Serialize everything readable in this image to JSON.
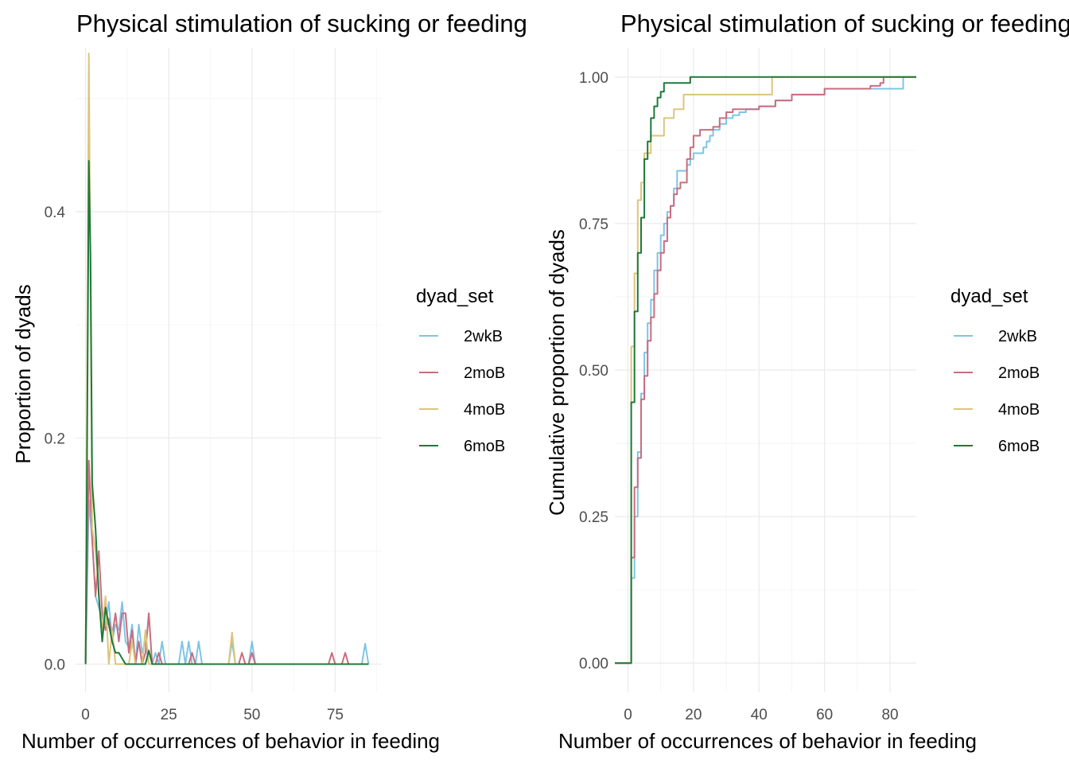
{
  "chart_data": [
    {
      "type": "line",
      "title": "Physical stimulation of sucking or feeding",
      "xlabel": "Number of occurrences of behavior in feeding",
      "ylabel": "Proportion of dyads",
      "xlim": [
        -3,
        89
      ],
      "ylim": [
        -0.025,
        0.545
      ],
      "x_major_ticks": [
        0,
        25,
        50,
        75
      ],
      "x_tick_labels": [
        "0",
        "25",
        "50",
        "75"
      ],
      "x_minor_ticks": [
        12.5,
        37.5,
        62.5,
        87.5
      ],
      "y_major_ticks": [
        0,
        0.2,
        0.4
      ],
      "y_tick_labels": [
        "0.0",
        "0.2",
        "0.4"
      ],
      "y_minor_ticks": [
        0.1,
        0.3,
        0.5
      ],
      "grid": true,
      "legend": {
        "title": "dyad_set",
        "position": "right"
      },
      "series": [
        {
          "name": "2wkB",
          "color": "#7fc4e4",
          "x": [
            0,
            1,
            2,
            3,
            4,
            5,
            6,
            7,
            8,
            9,
            10,
            11,
            12,
            13,
            14,
            15,
            16,
            17,
            18,
            19,
            20,
            21,
            22,
            23,
            24,
            25,
            26,
            27,
            28,
            29,
            30,
            31,
            32,
            33,
            34,
            35,
            36,
            37,
            38,
            39,
            40,
            41,
            42,
            43,
            44,
            45,
            46,
            47,
            48,
            49,
            50,
            51,
            52,
            60,
            70,
            80,
            83,
            84,
            85
          ],
          "y": [
            0.0,
            0.145,
            0.11,
            0.06,
            0.05,
            0.04,
            0.035,
            0.055,
            0.02,
            0.035,
            0.03,
            0.055,
            0.02,
            0.015,
            0.035,
            0.0,
            0.035,
            0.01,
            0.02,
            0.0,
            0.0,
            0.01,
            0.0,
            0.02,
            0.0,
            0.0,
            0.0,
            0.0,
            0.0,
            0.02,
            0.0,
            0.02,
            0.0,
            0.0,
            0.02,
            0.0,
            0.0,
            0.0,
            0.0,
            0.0,
            0.0,
            0.0,
            0.0,
            0.0,
            0.02,
            0.0,
            0.0,
            0.0,
            0.0,
            0.0,
            0.02,
            0.0,
            0.0,
            0.0,
            0.0,
            0.0,
            0.0,
            0.018,
            0.0
          ]
        },
        {
          "name": "2moB",
          "color": "#c96d7f",
          "x": [
            0,
            1,
            2,
            3,
            4,
            5,
            6,
            7,
            8,
            9,
            10,
            11,
            12,
            13,
            14,
            15,
            16,
            17,
            18,
            19,
            20,
            21,
            22,
            23,
            24,
            25,
            26,
            27,
            28,
            29,
            30,
            31,
            32,
            33,
            34,
            35,
            36,
            37,
            38,
            39,
            40,
            41,
            42,
            43,
            44,
            45,
            46,
            47,
            48,
            49,
            50,
            51,
            52,
            60,
            70,
            73,
            74,
            75,
            77,
            78,
            79,
            80,
            85
          ],
          "y": [
            0.0,
            0.18,
            0.11,
            0.06,
            0.1,
            0.045,
            0.03,
            0.04,
            0.025,
            0.045,
            0.02,
            0.045,
            0.045,
            0.01,
            0.03,
            0.0,
            0.02,
            0.0,
            0.01,
            0.045,
            0.0,
            0.0,
            0.01,
            0.0,
            0.0,
            0.0,
            0.0,
            0.0,
            0.0,
            0.0,
            0.0,
            0.0,
            0.01,
            0.0,
            0.0,
            0.0,
            0.0,
            0.0,
            0.0,
            0.0,
            0.0,
            0.0,
            0.0,
            0.0,
            0.0,
            0.0,
            0.0,
            0.01,
            0.0,
            0.0,
            0.01,
            0.0,
            0.0,
            0.0,
            0.0,
            0.0,
            0.01,
            0.0,
            0.0,
            0.01,
            0.0,
            0.0,
            0.0
          ]
        },
        {
          "name": "4moB",
          "color": "#dcc57a",
          "x": [
            0,
            1,
            2,
            3,
            4,
            5,
            6,
            7,
            8,
            9,
            10,
            11,
            12,
            13,
            14,
            15,
            16,
            17,
            18,
            19,
            20,
            21,
            40,
            43,
            44,
            45,
            46,
            50,
            85
          ],
          "y": [
            0.0,
            0.54,
            0.12,
            0.1,
            0.06,
            0.03,
            0.06,
            0.0,
            0.03,
            0.0,
            0.0,
            0.0,
            0.0,
            0.0,
            0.02,
            0.0,
            0.0,
            0.0,
            0.03,
            0.0,
            0.0,
            0.0,
            0.0,
            0.0,
            0.028,
            0.0,
            0.0,
            0.0,
            0.0
          ]
        },
        {
          "name": "6moB",
          "color": "#1d7a3a",
          "x": [
            0,
            0.3,
            1,
            1.5,
            2,
            3,
            4,
            5,
            6,
            7,
            8,
            9,
            10,
            11,
            12,
            13,
            14,
            15,
            16,
            17,
            18,
            19,
            20,
            21,
            85
          ],
          "y": [
            0.0,
            0.11,
            0.445,
            0.36,
            0.16,
            0.12,
            0.06,
            0.02,
            0.05,
            0.035,
            0.02,
            0.01,
            0.01,
            0.005,
            0.0,
            0.0,
            0.0,
            0.0,
            0.0,
            0.0,
            0.0,
            0.012,
            0.0,
            0.0,
            0.0
          ]
        }
      ]
    },
    {
      "type": "line",
      "title": "Physical stimulation of sucking or feeding",
      "xlabel": "Number of occurrences of behavior in feeding",
      "ylabel": "Cumulative proportion of dyads",
      "xlim": [
        -4,
        88
      ],
      "ylim": [
        -0.05,
        1.05
      ],
      "x_major_ticks": [
        0,
        20,
        40,
        60,
        80
      ],
      "x_tick_labels": [
        "0",
        "20",
        "40",
        "60",
        "80"
      ],
      "x_minor_ticks": [
        10,
        30,
        50,
        70
      ],
      "y_major_ticks": [
        0,
        0.25,
        0.5,
        0.75,
        1.0
      ],
      "y_tick_labels": [
        "0.00",
        "0.25",
        "0.50",
        "0.75",
        "1.00"
      ],
      "y_minor_ticks": [
        0.125,
        0.375,
        0.625,
        0.875
      ],
      "grid": true,
      "legend": {
        "title": "dyad_set",
        "position": "right"
      },
      "series": [
        {
          "name": "2wkB",
          "color": "#7fc4e4",
          "x": [
            -4,
            1,
            2,
            3,
            4,
            5,
            6,
            7,
            8,
            9,
            10,
            11,
            12,
            13,
            14,
            15,
            16,
            17,
            18,
            19,
            20,
            21,
            22,
            23,
            24,
            25,
            26,
            28,
            30,
            32,
            34,
            36,
            40,
            45,
            50,
            60,
            70,
            83,
            84,
            88
          ],
          "y": [
            0.0,
            0.145,
            0.25,
            0.36,
            0.46,
            0.53,
            0.58,
            0.62,
            0.67,
            0.7,
            0.73,
            0.75,
            0.77,
            0.78,
            0.81,
            0.84,
            0.84,
            0.84,
            0.85,
            0.86,
            0.87,
            0.87,
            0.87,
            0.88,
            0.89,
            0.9,
            0.91,
            0.92,
            0.93,
            0.935,
            0.94,
            0.945,
            0.95,
            0.96,
            0.97,
            0.98,
            0.98,
            0.98,
            1.0,
            1.0
          ]
        },
        {
          "name": "2moB",
          "color": "#c96d7f",
          "x": [
            -4,
            1,
            2,
            3,
            4,
            5,
            6,
            7,
            8,
            9,
            10,
            11,
            12,
            13,
            14,
            15,
            16,
            17,
            18,
            19,
            20,
            21,
            22,
            23,
            24,
            25,
            26,
            28,
            30,
            32,
            40,
            45,
            50,
            60,
            74,
            77,
            78,
            88
          ],
          "y": [
            0.0,
            0.18,
            0.3,
            0.35,
            0.45,
            0.49,
            0.55,
            0.59,
            0.63,
            0.67,
            0.7,
            0.72,
            0.76,
            0.78,
            0.8,
            0.81,
            0.82,
            0.82,
            0.86,
            0.88,
            0.9,
            0.9,
            0.91,
            0.91,
            0.91,
            0.91,
            0.915,
            0.93,
            0.94,
            0.945,
            0.95,
            0.96,
            0.97,
            0.98,
            0.985,
            0.99,
            1.0,
            1.0
          ]
        },
        {
          "name": "4moB",
          "color": "#dcc57a",
          "x": [
            -4,
            1,
            2,
            3,
            4,
            5,
            6,
            7,
            8,
            9,
            10,
            11,
            12,
            14,
            15,
            16,
            17,
            18,
            19,
            20,
            22,
            26,
            32,
            44,
            88
          ],
          "y": [
            0.0,
            0.54,
            0.665,
            0.79,
            0.82,
            0.87,
            0.87,
            0.9,
            0.9,
            0.9,
            0.9,
            0.93,
            0.93,
            0.945,
            0.945,
            0.945,
            0.97,
            0.97,
            0.97,
            0.97,
            0.97,
            0.97,
            0.97,
            1.0,
            1.0
          ]
        },
        {
          "name": "6moB",
          "color": "#1d7a3a",
          "x": [
            -4,
            1,
            2,
            3,
            4,
            5,
            6,
            7,
            8,
            9,
            10,
            11,
            12,
            14,
            16,
            19,
            88
          ],
          "y": [
            0.0,
            0.445,
            0.6,
            0.7,
            0.76,
            0.86,
            0.89,
            0.93,
            0.95,
            0.965,
            0.975,
            0.99,
            0.99,
            0.99,
            0.99,
            1.0,
            1.0
          ]
        }
      ]
    }
  ]
}
